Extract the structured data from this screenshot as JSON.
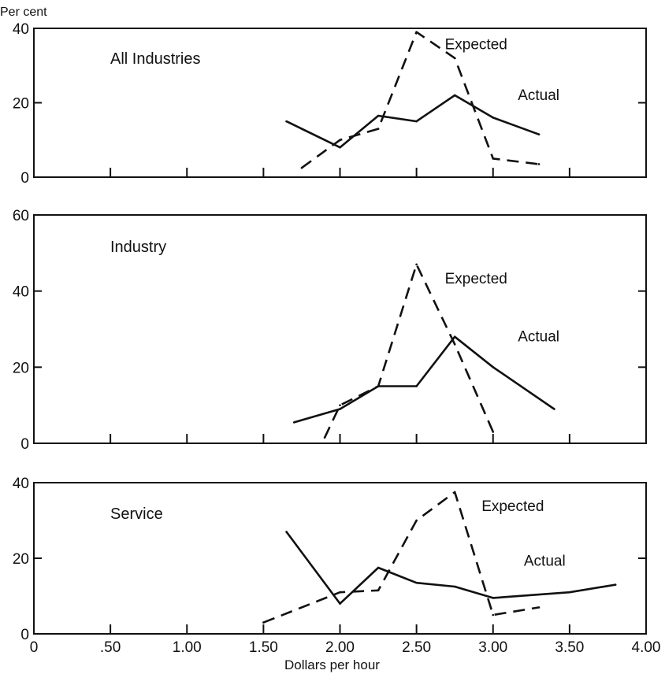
{
  "chart_data": [
    {
      "type": "line",
      "title": "All Industries",
      "ylabel": "Per cent",
      "xlabel": "",
      "ylim": [
        0,
        40
      ],
      "yticks": [
        "0",
        "20",
        "40"
      ],
      "xlim": [
        0,
        4.0
      ],
      "series": [
        {
          "name": "Expected",
          "style": "dashed",
          "x": [
            1.75,
            2.0,
            2.25,
            2.5,
            2.75,
            3.0,
            3.3
          ],
          "y": [
            2.5,
            10,
            13,
            39,
            32,
            5,
            3.5
          ]
        },
        {
          "name": "Actual",
          "style": "solid",
          "x": [
            1.65,
            2.0,
            2.25,
            2.5,
            2.75,
            3.0,
            3.3
          ],
          "y": [
            15,
            8,
            16.5,
            15,
            22,
            16,
            11.5
          ]
        }
      ]
    },
    {
      "type": "line",
      "title": "Industry",
      "ylabel": "",
      "xlabel": "",
      "ylim": [
        0,
        60
      ],
      "yticks": [
        "0",
        "20",
        "40",
        "60"
      ],
      "xlim": [
        0,
        4.0
      ],
      "series": [
        {
          "name": "Expected",
          "style": "dashed",
          "x": [
            1.9,
            2.0,
            2.25,
            2.5,
            2.75,
            3.0
          ],
          "y": [
            1.5,
            10,
            15,
            47,
            26,
            3
          ]
        },
        {
          "name": "Actual",
          "style": "solid",
          "x": [
            1.7,
            2.0,
            2.25,
            2.5,
            2.75,
            3.0,
            3.4
          ],
          "y": [
            5.5,
            9,
            15,
            15,
            28,
            20,
            9
          ]
        }
      ]
    },
    {
      "type": "line",
      "title": "Service",
      "ylabel": "",
      "xlabel": "Dollars per hour",
      "ylim": [
        0,
        40
      ],
      "yticks": [
        "0",
        "20",
        "40"
      ],
      "xlim": [
        0,
        4.0
      ],
      "xticks": [
        "0",
        ".50",
        "1.00",
        "1.50",
        "2.00",
        "2.50",
        "3.00",
        "3.50",
        "4.00"
      ],
      "series": [
        {
          "name": "Expected",
          "style": "dashed",
          "x": [
            1.5,
            2.0,
            2.25,
            2.5,
            2.75,
            3.0,
            3.3
          ],
          "y": [
            3,
            11,
            11.5,
            30,
            37.5,
            5,
            7
          ]
        },
        {
          "name": "Actual",
          "style": "solid",
          "x": [
            1.65,
            2.0,
            2.25,
            2.5,
            2.75,
            3.0,
            3.5,
            3.8
          ],
          "y": [
            27,
            8,
            17.5,
            13.5,
            12.5,
            9.5,
            11,
            13
          ]
        }
      ]
    }
  ]
}
